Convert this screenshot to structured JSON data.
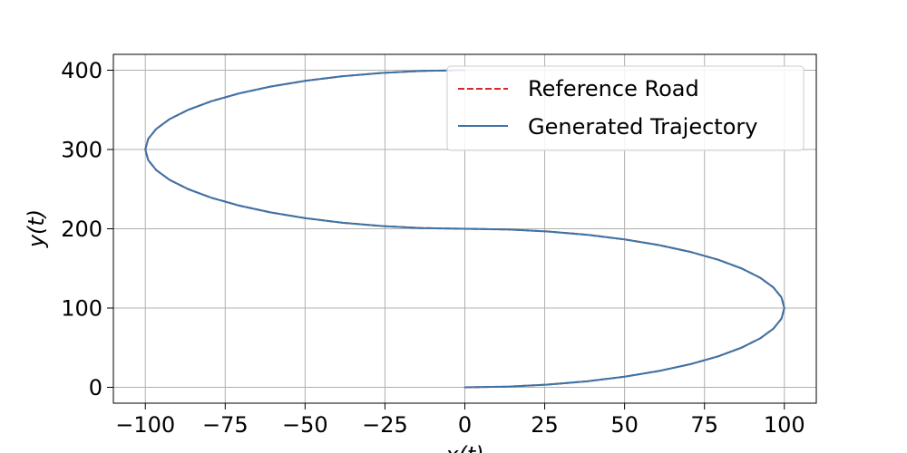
{
  "chart_data": {
    "type": "line",
    "xlabel": "x(t)",
    "ylabel": "y(t)",
    "xlim": [
      -110,
      110
    ],
    "ylim": [
      -20,
      420
    ],
    "xticks": [
      -100,
      -75,
      -50,
      -25,
      0,
      25,
      50,
      75,
      100
    ],
    "yticks": [
      0,
      100,
      200,
      300,
      400
    ],
    "grid": true,
    "legend_position": "upper-right",
    "series": [
      {
        "name": "Reference Road",
        "style": "dashed",
        "color": "#d62728",
        "x": [
          0,
          13.4,
          25.9,
          38.3,
          50,
          60.9,
          70.7,
          79.3,
          86.6,
          92.4,
          96.6,
          99.1,
          100,
          99.1,
          96.6,
          92.4,
          86.6,
          79.3,
          70.7,
          60.9,
          50,
          38.3,
          25.9,
          13.4,
          0,
          -13.4,
          -25.9,
          -38.3,
          -50,
          -60.9,
          -70.7,
          -79.3,
          -86.6,
          -92.4,
          -96.6,
          -99.1,
          -100,
          -99.1,
          -96.6,
          -92.4,
          -86.6,
          -79.3,
          -70.7,
          -60.9,
          -50,
          -38.3,
          -25.9,
          -13.4,
          0
        ],
        "y": [
          0,
          0.9,
          3.4,
          7.6,
          13.4,
          20.7,
          29.3,
          39.1,
          50,
          61.7,
          74.1,
          86.6,
          100,
          113.4,
          125.9,
          138.3,
          150,
          160.9,
          170.7,
          179.3,
          186.6,
          192.4,
          196.6,
          199.1,
          200,
          200.9,
          203.4,
          207.6,
          213.4,
          220.7,
          229.3,
          239.1,
          250,
          261.7,
          274.1,
          286.6,
          300,
          313.4,
          325.9,
          338.3,
          350,
          360.9,
          370.7,
          379.3,
          386.6,
          392.4,
          396.6,
          399.1,
          400
        ]
      },
      {
        "name": "Generated Trajectory",
        "style": "solid",
        "color": "#3a75a8",
        "x": [
          0,
          13.4,
          25.9,
          38.3,
          50,
          60.9,
          70.7,
          79.3,
          86.6,
          92.4,
          96.6,
          99.1,
          100,
          99.1,
          96.6,
          92.4,
          86.6,
          79.3,
          70.7,
          60.9,
          50,
          38.3,
          25.9,
          13.4,
          0,
          -13.4,
          -25.9,
          -38.3,
          -50,
          -60.9,
          -70.7,
          -79.3,
          -86.6,
          -92.4,
          -96.6,
          -99.1,
          -100,
          -99.1,
          -96.6,
          -92.4,
          -86.6,
          -79.3,
          -70.7,
          -60.9,
          -50,
          -38.3,
          -25.9,
          -13.4,
          0
        ],
        "y": [
          0,
          0.9,
          3.4,
          7.6,
          13.4,
          20.7,
          29.3,
          39.1,
          50,
          61.7,
          74.1,
          86.6,
          100,
          113.4,
          125.9,
          138.3,
          150,
          160.9,
          170.7,
          179.3,
          186.6,
          192.4,
          196.6,
          199.1,
          200,
          200.9,
          203.4,
          207.6,
          213.4,
          220.7,
          229.3,
          239.1,
          250,
          261.7,
          274.1,
          286.6,
          300,
          313.4,
          325.9,
          338.3,
          350,
          360.9,
          370.7,
          379.3,
          386.6,
          392.4,
          396.6,
          399.1,
          400
        ]
      }
    ]
  }
}
